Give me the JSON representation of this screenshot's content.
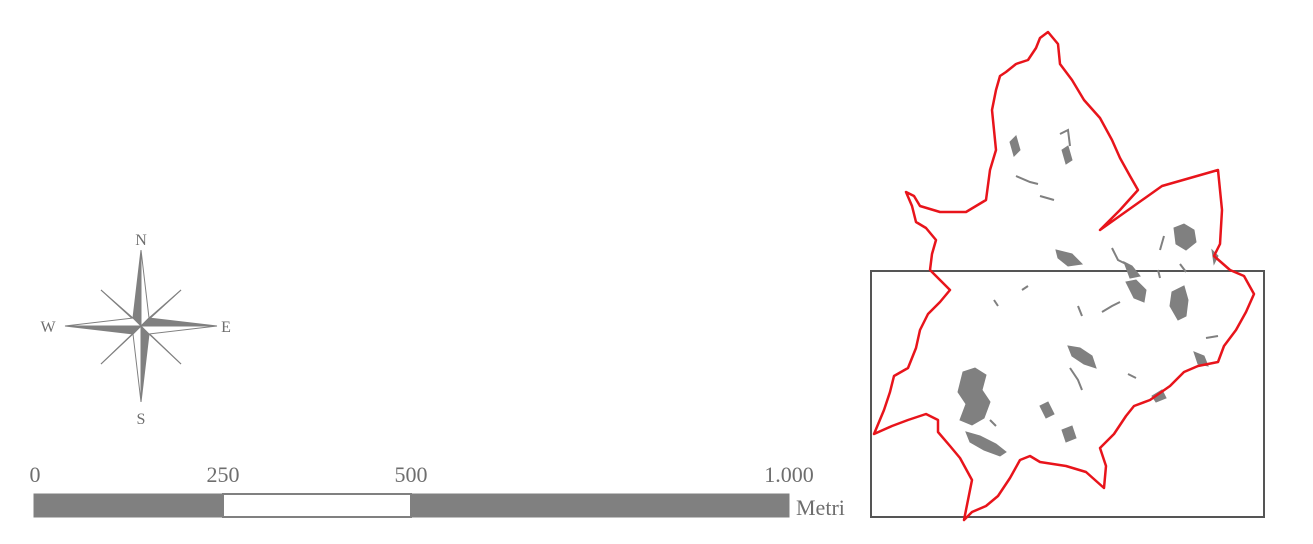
{
  "compass": {
    "north": "N",
    "south": "S",
    "east": "E",
    "west": "W"
  },
  "scale_bar": {
    "ticks": [
      "0",
      "250",
      "500",
      "1.000"
    ],
    "unit": "Metri"
  },
  "colors": {
    "boundary": "#e8141b",
    "patches": "#808080",
    "frame": "#555555",
    "text": "#6e6e6e",
    "bar_dark": "#808080",
    "bar_light": "#ffffff"
  }
}
